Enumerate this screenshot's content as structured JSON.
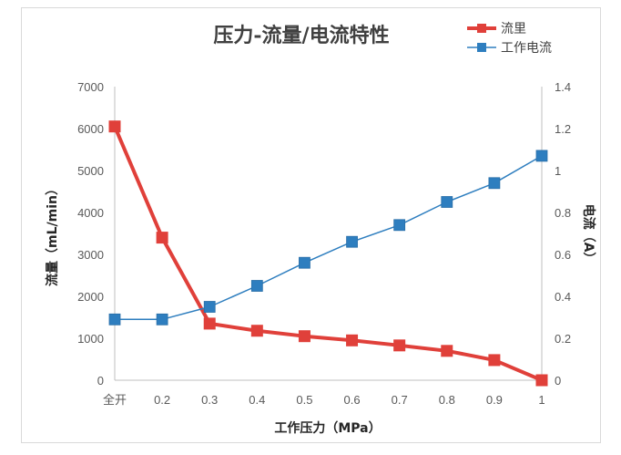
{
  "chart_data": {
    "type": "line",
    "title": "压力-流量/电流特性",
    "xlabel": "工作压力（MPa）",
    "ylabel": "流量（mL/min）",
    "y2label": "电流（A）",
    "categories": [
      "全开",
      "0.2",
      "0.3",
      "0.4",
      "0.5",
      "0.6",
      "0.7",
      "0.8",
      "0.9",
      "1"
    ],
    "ylim": [
      0,
      7000
    ],
    "y2lim": [
      0,
      1.4
    ],
    "yticks": [
      "0",
      "1000",
      "2000",
      "3000",
      "4000",
      "5000",
      "6000",
      "7000"
    ],
    "y2ticks": [
      "0",
      "0.2",
      "0.4",
      "0.6",
      "0.8",
      "1",
      "1.2",
      "1.4"
    ],
    "grid": false,
    "legend_position": "top-right",
    "series": [
      {
        "name": "流里",
        "axis": "left",
        "color": "#e0403a",
        "values": [
          6050,
          3400,
          1350,
          1180,
          1050,
          950,
          830,
          700,
          480,
          0
        ]
      },
      {
        "name": "工作电流",
        "axis": "right",
        "color": "#2e7ebf",
        "values": [
          0.29,
          0.29,
          0.35,
          0.45,
          0.56,
          0.66,
          0.74,
          0.85,
          0.94,
          1.07
        ]
      }
    ]
  }
}
